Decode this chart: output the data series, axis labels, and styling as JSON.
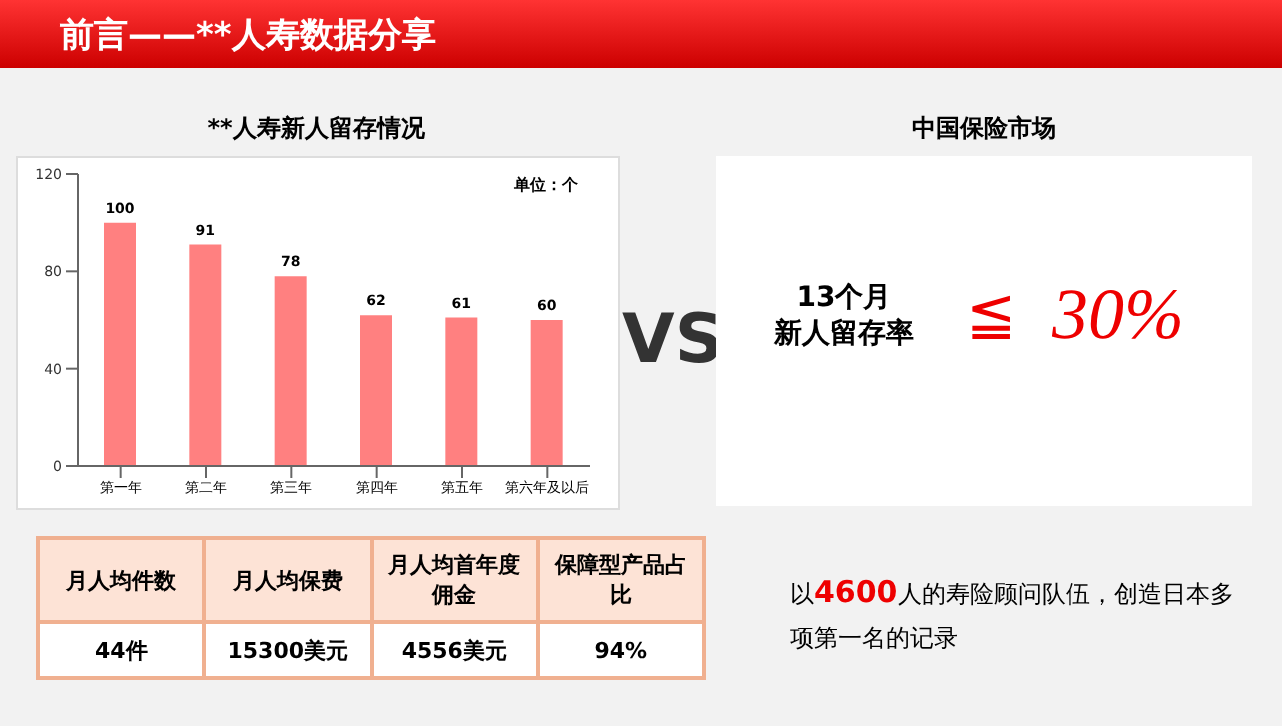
{
  "chart_data": [
    {
      "type": "other",
      "title": "前言——**人寿数据分享"
    },
    {
      "type": "bar",
      "title": "**人寿新人留存情况",
      "categories": [
        "第一年",
        "第二年",
        "第三年",
        "第四年",
        "第五年",
        "第六年及以后"
      ],
      "values": [
        100,
        91,
        78,
        62,
        61,
        60
      ],
      "color": "#ff8080",
      "ylim": [
        0,
        120
      ],
      "yticks": [
        0,
        40,
        80,
        120
      ],
      "data_labels": true,
      "annotations": [
        "单位：个"
      ]
    },
    {
      "type": "other",
      "title": "中国保险市场",
      "annotations": [
        "VS",
        "13个月",
        "新人留存率",
        "≦",
        "30%"
      ]
    },
    {
      "type": "other",
      "annotations": [
        "月人均件数",
        "月人均保费",
        "月人均首年度佣金",
        "保障型产品占比",
        "44件",
        "15300美元",
        "4556美元",
        "94%"
      ]
    },
    {
      "type": "other",
      "annotations": [
        "以4600人的寿险顾问队伍，创造日本多项第一名的记录"
      ]
    }
  ]
}
